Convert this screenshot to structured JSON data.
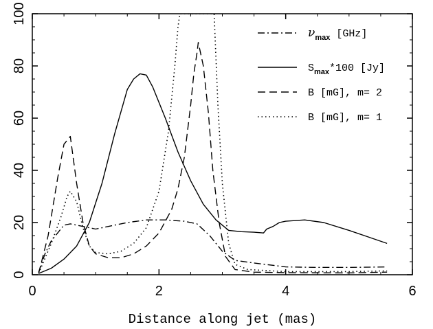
{
  "chart_data": {
    "type": "line",
    "title": "",
    "xlabel": "Distance along jet (mas)",
    "ylabel": "",
    "xlim": [
      0,
      6
    ],
    "ylim": [
      0,
      100
    ],
    "xticks": [
      0,
      2,
      4,
      6
    ],
    "yticks": [
      0,
      20,
      40,
      60,
      80,
      100
    ],
    "legend_position": "top-right",
    "grid": false,
    "series": [
      {
        "name_parts": [
          "ν",
          "max",
          " [GHz]"
        ],
        "dash": "dashdot",
        "points": [
          [
            0.1,
            1
          ],
          [
            0.2,
            8
          ],
          [
            0.3,
            13
          ],
          [
            0.4,
            16
          ],
          [
            0.5,
            19
          ],
          [
            0.6,
            19.5
          ],
          [
            0.7,
            19
          ],
          [
            0.8,
            18.5
          ],
          [
            1.0,
            17.5
          ],
          [
            1.2,
            18.5
          ],
          [
            1.5,
            20
          ],
          [
            1.8,
            21
          ],
          [
            2.1,
            21
          ],
          [
            2.4,
            20.5
          ],
          [
            2.6,
            19.5
          ],
          [
            2.8,
            15
          ],
          [
            3.0,
            9
          ],
          [
            3.2,
            5.5
          ],
          [
            3.5,
            4.5
          ],
          [
            4.0,
            3
          ],
          [
            4.5,
            2.8
          ],
          [
            5.0,
            2.8
          ],
          [
            5.6,
            3
          ]
        ]
      },
      {
        "name_parts": [
          "S",
          "max",
          "*100 [Jy]"
        ],
        "dash": "solid",
        "points": [
          [
            0.1,
            0.5
          ],
          [
            0.3,
            2.5
          ],
          [
            0.5,
            6
          ],
          [
            0.7,
            11
          ],
          [
            0.9,
            20
          ],
          [
            1.1,
            35
          ],
          [
            1.3,
            54
          ],
          [
            1.5,
            71
          ],
          [
            1.6,
            75
          ],
          [
            1.7,
            77
          ],
          [
            1.8,
            76.5
          ],
          [
            1.9,
            72
          ],
          [
            2.1,
            60
          ],
          [
            2.3,
            47
          ],
          [
            2.5,
            36
          ],
          [
            2.7,
            27
          ],
          [
            2.9,
            21
          ],
          [
            3.1,
            17
          ],
          [
            3.3,
            16.5
          ],
          [
            3.5,
            16.3
          ],
          [
            3.65,
            16
          ],
          [
            3.7,
            17.5
          ],
          [
            3.8,
            18.5
          ],
          [
            3.9,
            20
          ],
          [
            4.0,
            20.5
          ],
          [
            4.3,
            21
          ],
          [
            4.6,
            20
          ],
          [
            5.0,
            17
          ],
          [
            5.3,
            14.5
          ],
          [
            5.6,
            12
          ]
        ]
      },
      {
        "name_parts": [
          "B [mG], m= 2"
        ],
        "dash": "dashed",
        "points": [
          [
            0.1,
            0.5
          ],
          [
            0.25,
            15
          ],
          [
            0.4,
            37
          ],
          [
            0.5,
            50
          ],
          [
            0.6,
            53
          ],
          [
            0.7,
            35
          ],
          [
            0.8,
            20
          ],
          [
            0.9,
            11
          ],
          [
            1.0,
            8
          ],
          [
            1.2,
            6.5
          ],
          [
            1.4,
            6.5
          ],
          [
            1.6,
            8
          ],
          [
            1.8,
            11
          ],
          [
            2.0,
            16
          ],
          [
            2.2,
            25
          ],
          [
            2.3,
            33
          ],
          [
            2.4,
            45
          ],
          [
            2.5,
            65
          ],
          [
            2.55,
            77
          ],
          [
            2.6,
            85
          ],
          [
            2.62,
            89
          ],
          [
            2.7,
            80
          ],
          [
            2.78,
            62
          ],
          [
            2.85,
            40
          ],
          [
            2.95,
            20
          ],
          [
            3.05,
            7
          ],
          [
            3.2,
            2
          ],
          [
            3.5,
            1
          ],
          [
            4.0,
            0.8
          ],
          [
            5.0,
            0.7
          ],
          [
            5.6,
            1
          ]
        ]
      },
      {
        "name_parts": [
          "B [mG], m= 1"
        ],
        "dash": "dotted",
        "points": [
          [
            0.1,
            0.5
          ],
          [
            0.3,
            12
          ],
          [
            0.45,
            22
          ],
          [
            0.55,
            30
          ],
          [
            0.6,
            32
          ],
          [
            0.7,
            28
          ],
          [
            0.8,
            18
          ],
          [
            0.9,
            11
          ],
          [
            1.0,
            8.5
          ],
          [
            1.2,
            8
          ],
          [
            1.4,
            9
          ],
          [
            1.6,
            12
          ],
          [
            1.8,
            18
          ],
          [
            2.0,
            32
          ],
          [
            2.15,
            55
          ],
          [
            2.25,
            80
          ],
          [
            2.3,
            95
          ],
          [
            2.33,
            100
          ],
          [
            2.87,
            100
          ],
          [
            2.93,
            65
          ],
          [
            3.0,
            35
          ],
          [
            3.1,
            12
          ],
          [
            3.2,
            4
          ],
          [
            3.4,
            2
          ],
          [
            4.0,
            1.2
          ],
          [
            5.0,
            1.2
          ],
          [
            5.6,
            1.5
          ]
        ]
      }
    ]
  }
}
